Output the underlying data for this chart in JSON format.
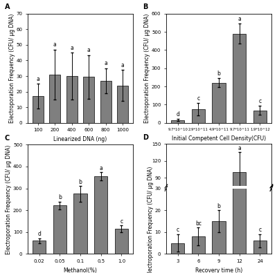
{
  "panel_A": {
    "label": "A",
    "xlabel": "Linearized DNA (ng)",
    "ylabel": "Electroporation Frequency (CFU/ μg DNA)",
    "categories": [
      "100",
      "200",
      "400",
      "600",
      "800",
      "1000"
    ],
    "values": [
      17,
      31,
      30,
      29.5,
      27,
      24
    ],
    "errors": [
      8,
      16,
      15,
      14,
      8,
      10
    ],
    "sig_labels": [
      "a",
      "a",
      "a",
      "a",
      "a",
      "a"
    ],
    "ylim": [
      0,
      70
    ],
    "yticks": [
      0,
      10,
      20,
      30,
      40,
      50,
      60,
      70
    ],
    "bar_color": "#7f7f7f",
    "bar_width": 0.65
  },
  "panel_B": {
    "label": "B",
    "xlabel": "Initial Competent Cell Density(CFU)",
    "ylabel": "Electroporation Frequency (CFU/ μg DNA)",
    "categories": [
      "9.7*10^10",
      "2.9*10^11",
      "4.9*10^11",
      "9.7*10^11",
      "1.9*10^12"
    ],
    "values": [
      15,
      75,
      220,
      490,
      68
    ],
    "errors": [
      5,
      35,
      25,
      55,
      25
    ],
    "sig_labels": [
      "d",
      "c",
      "b",
      "a",
      "c"
    ],
    "ylim": [
      0,
      600
    ],
    "yticks": [
      0,
      100,
      200,
      300,
      400,
      500,
      600
    ],
    "bar_color": "#7f7f7f",
    "bar_width": 0.65
  },
  "panel_C": {
    "label": "C",
    "xlabel": "Methanol(%)",
    "ylabel": "Electroporation Frequency (CFU/ μg DNA)",
    "categories": [
      "0.02",
      "0.05",
      "0.1",
      "0.5",
      "1.0"
    ],
    "values": [
      60,
      222,
      275,
      355,
      115
    ],
    "errors": [
      12,
      18,
      35,
      18,
      15
    ],
    "sig_labels": [
      "d",
      "b",
      "b",
      "a",
      "c"
    ],
    "ylim": [
      0,
      500
    ],
    "yticks": [
      0,
      100,
      200,
      300,
      400,
      500
    ],
    "bar_color": "#7f7f7f",
    "bar_width": 0.65
  },
  "panel_D": {
    "label": "D",
    "xlabel": "Recovery time (h)",
    "ylabel": "Electroporation Frequency (CFU/ μg DNA)",
    "categories": [
      "3",
      "6",
      "9",
      "12",
      "24"
    ],
    "values": [
      5,
      8,
      15,
      100,
      6
    ],
    "errors": [
      4,
      4,
      5,
      35,
      3
    ],
    "sig_labels": [
      "c",
      "bc",
      "b",
      "a",
      "c"
    ],
    "ylim_lower": [
      0,
      30
    ],
    "ylim_upper": [
      75,
      150
    ],
    "yticks_lower": [
      0,
      10,
      20,
      30
    ],
    "yticks_upper": [
      90,
      120,
      150
    ],
    "bar_color": "#7f7f7f",
    "bar_width": 0.65
  },
  "fig_bg": "#ffffff",
  "panel_bg": "#ffffff",
  "font_size": 5.5,
  "label_font_size": 7.0,
  "tick_font_size": 5.0,
  "axis_label_font_size": 5.5
}
